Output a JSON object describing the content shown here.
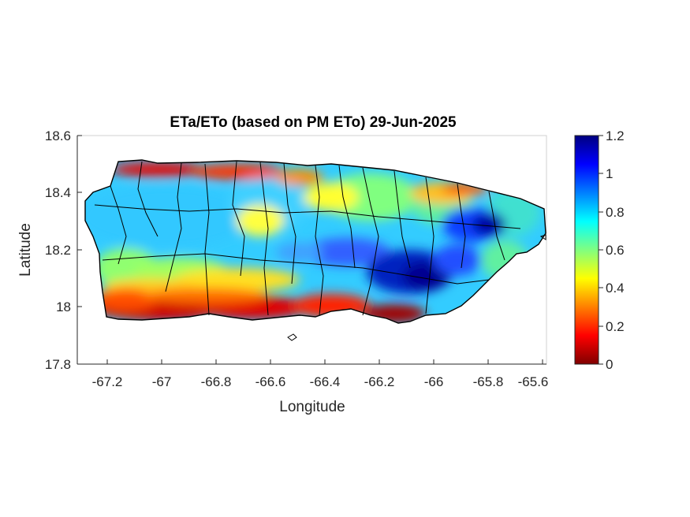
{
  "map": {
    "title": "ETa/ETo (based on PM ETo) 29-Jun-2025",
    "xlabel": "Longitude",
    "ylabel": "Latitude",
    "xlim": [
      -67.3,
      -65.58
    ],
    "ylim": [
      17.8,
      18.6
    ],
    "xticks": [
      "-67.2",
      "-67",
      "-66.8",
      "-66.6",
      "-66.4",
      "-66.2",
      "-66",
      "-65.8",
      "-65.6"
    ],
    "yticks": [
      "18.6",
      "18.4",
      "18.2",
      "18",
      "17.8"
    ],
    "colorbar": {
      "range": [
        0,
        1.2
      ],
      "ticks": [
        "1.2",
        "1",
        "0.8",
        "0.6",
        "0.4",
        "0.2",
        "0"
      ],
      "colormap": "jet-reversed",
      "stops": [
        "#800000",
        "#ff0000",
        "#ff8000",
        "#ffff00",
        "#80ff80",
        "#00ffff",
        "#0080ff",
        "#0000ff",
        "#000080"
      ]
    },
    "colors": {
      "boundary": "#000000",
      "low": "#cc0000",
      "mid": "#ffff00",
      "high": "#0000a0"
    }
  }
}
